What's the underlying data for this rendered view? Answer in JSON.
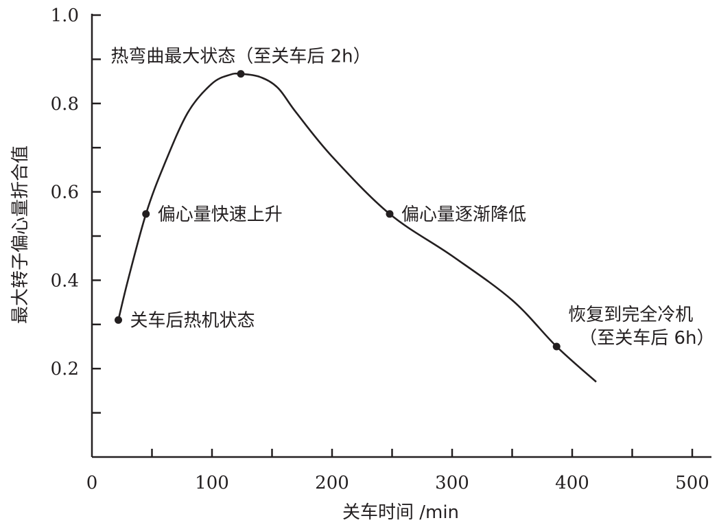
{
  "chart_data": {
    "type": "line",
    "xlabel": "关车时间 /min",
    "ylabel": "最大转子偏心量折合值",
    "xlim": [
      0,
      500
    ],
    "ylim": [
      0,
      1.0
    ],
    "x_ticks": [
      0,
      100,
      200,
      300,
      400,
      500
    ],
    "x_tick_labels": [
      "0",
      "100",
      "200",
      "300",
      "400",
      "500"
    ],
    "y_ticks": [
      0.2,
      0.4,
      0.6,
      0.8,
      1.0
    ],
    "y_tick_labels": [
      "0.2",
      "0.4",
      "0.6",
      "0.8",
      "1.0"
    ],
    "grid": false,
    "line_color": "#231f20",
    "series": [
      {
        "x": [
          22,
          30,
          45,
          60,
          80,
          100,
          115,
          124,
          140,
          155,
          170,
          200,
          248,
          300,
          350,
          387,
          420
        ],
        "y": [
          0.31,
          0.4,
          0.55,
          0.66,
          0.78,
          0.845,
          0.865,
          0.867,
          0.86,
          0.835,
          0.78,
          0.68,
          0.55,
          0.455,
          0.355,
          0.25,
          0.17
        ]
      }
    ],
    "markers": [
      {
        "x": 22,
        "y": 0.31
      },
      {
        "x": 45,
        "y": 0.55
      },
      {
        "x": 124,
        "y": 0.867
      },
      {
        "x": 248,
        "y": 0.55
      },
      {
        "x": 387,
        "y": 0.25
      }
    ],
    "annotations": [
      {
        "x": 22,
        "y": 0.31,
        "lines": [
          "关车后热机状态"
        ],
        "anchor": "right"
      },
      {
        "x": 45,
        "y": 0.55,
        "lines": [
          "偏心量快速上升"
        ],
        "anchor": "right"
      },
      {
        "x": 124,
        "y": 0.867,
        "lines": [
          "热弯曲最大状态（至关车后 2h）"
        ],
        "anchor": "above"
      },
      {
        "x": 248,
        "y": 0.55,
        "lines": [
          "偏心量逐渐降低"
        ],
        "anchor": "right"
      },
      {
        "x": 387,
        "y": 0.25,
        "lines": [
          "恢复到完全冷机",
          "（至关车后 6h）"
        ],
        "anchor": "above-right"
      }
    ]
  }
}
